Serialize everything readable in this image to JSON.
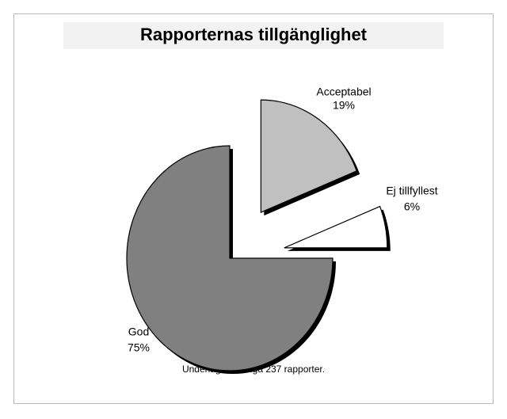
{
  "chart_data": {
    "type": "pie",
    "title": "Rapporternas tillgänglighet",
    "categories": [
      "Acceptabel",
      "Ej tillfyllest",
      "God"
    ],
    "values": [
      19,
      6,
      75
    ],
    "value_labels": [
      "19%",
      "6%",
      "75%"
    ],
    "colors": [
      "#c0c0c0",
      "#ffffff",
      "#808080"
    ],
    "note": "Underlag: Samtliga 237 rapporter."
  }
}
